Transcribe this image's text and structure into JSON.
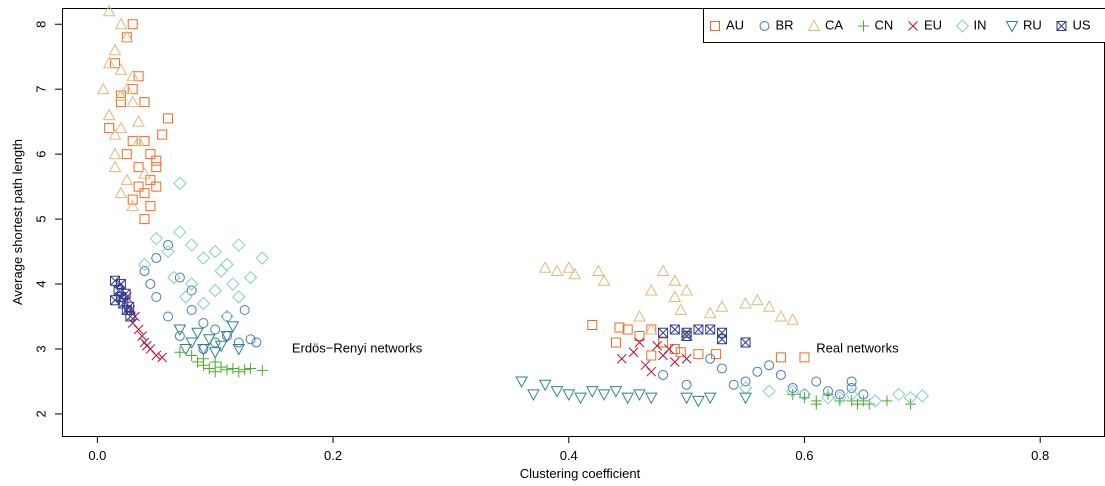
{
  "chart_data": {
    "type": "scatter",
    "x_label": "Clustering coefficient",
    "y_label": "Average shortest path length",
    "annotations": [
      {
        "text": "Erdös−Renyi networks",
        "x": 0.165,
        "y": 3.0
      },
      {
        "text": "Real networks",
        "x": 0.61,
        "y": 3.0
      }
    ],
    "xlim": [
      -0.03,
      0.855
    ],
    "ylim": [
      1.66,
      8.25
    ],
    "xticks": [
      {
        "value": 0,
        "label": "0.0"
      },
      0.2,
      0.4,
      0.6,
      0.8
    ],
    "yticks": [
      2,
      3,
      4,
      5,
      6,
      7,
      8
    ],
    "legend": "top-right",
    "series": [
      {
        "name": "AU",
        "color": "#f26a21",
        "marker": "square",
        "x": [
          0.01,
          0.015,
          0.02,
          0.025,
          0.03,
          0.035,
          0.04,
          0.045,
          0.05,
          0.055,
          0.06,
          0.03,
          0.04,
          0.035,
          0.045,
          0.025,
          0.05,
          0.04,
          0.03,
          0.045,
          0.035,
          0.02,
          0.04,
          0.03,
          0.05,
          0.42,
          0.443,
          0.45,
          0.46,
          0.47,
          0.48,
          0.49,
          0.495,
          0.51,
          0.525,
          0.58,
          0.6,
          0.44,
          0.47
        ],
        "values": [
          6.4,
          7.4,
          6.8,
          7.8,
          8.0,
          7.2,
          6.2,
          5.6,
          5.8,
          6.3,
          6.55,
          5.3,
          5.0,
          5.5,
          5.2,
          6.0,
          5.5,
          6.8,
          7.0,
          6.0,
          5.8,
          6.9,
          5.4,
          6.2,
          5.9,
          3.37,
          3.33,
          3.3,
          3.2,
          3.3,
          3.1,
          3.0,
          2.95,
          2.92,
          2.92,
          2.87,
          2.87,
          3.1,
          2.9
        ]
      },
      {
        "name": "BR",
        "color": "#4a78bd",
        "marker": "circle",
        "x": [
          0.04,
          0.05,
          0.06,
          0.07,
          0.05,
          0.08,
          0.09,
          0.1,
          0.11,
          0.12,
          0.13,
          0.125,
          0.1,
          0.09,
          0.07,
          0.06,
          0.045,
          0.08,
          0.11,
          0.135,
          0.48,
          0.5,
          0.52,
          0.53,
          0.55,
          0.56,
          0.57,
          0.58,
          0.59,
          0.6,
          0.61,
          0.62,
          0.63,
          0.64,
          0.64,
          0.65,
          0.54
        ],
        "values": [
          4.2,
          4.4,
          4.6,
          4.1,
          3.8,
          3.6,
          3.4,
          3.3,
          3.5,
          3.1,
          3.15,
          3.6,
          3.1,
          3.0,
          3.2,
          3.5,
          4.0,
          3.9,
          3.2,
          3.1,
          2.6,
          2.45,
          2.85,
          2.7,
          2.5,
          2.65,
          2.75,
          2.6,
          2.4,
          2.3,
          2.5,
          2.35,
          2.3,
          2.5,
          2.4,
          2.3,
          2.45
        ]
      },
      {
        "name": "CA",
        "color": "#dcbb7e",
        "marker": "triangle",
        "x": [
          0.005,
          0.01,
          0.015,
          0.02,
          0.025,
          0.03,
          0.035,
          0.02,
          0.015,
          0.01,
          0.025,
          0.03,
          0.02,
          0.015,
          0.04,
          0.035,
          0.025,
          0.01,
          0.02,
          0.03,
          0.015,
          0.02,
          0.38,
          0.39,
          0.4,
          0.405,
          0.425,
          0.43,
          0.47,
          0.48,
          0.49,
          0.49,
          0.5,
          0.495,
          0.52,
          0.53,
          0.55,
          0.56,
          0.57,
          0.58,
          0.59,
          0.46,
          0.47,
          0.5
        ],
        "values": [
          7.0,
          8.2,
          7.6,
          7.3,
          7.8,
          6.8,
          6.2,
          6.4,
          6.0,
          6.6,
          5.6,
          5.2,
          5.4,
          5.8,
          5.7,
          6.5,
          7.0,
          7.4,
          6.9,
          7.2,
          6.3,
          8.0,
          4.25,
          4.2,
          4.25,
          4.15,
          4.2,
          4.05,
          3.9,
          4.2,
          4.05,
          3.8,
          3.9,
          3.6,
          3.55,
          3.65,
          3.7,
          3.75,
          3.65,
          3.5,
          3.45,
          3.5,
          3.3,
          3.2
        ]
      },
      {
        "name": "CN",
        "color": "#4cad2b",
        "marker": "plus",
        "x": [
          0.07,
          0.08,
          0.085,
          0.09,
          0.095,
          0.1,
          0.105,
          0.11,
          0.115,
          0.12,
          0.125,
          0.14,
          0.09,
          0.1,
          0.13,
          0.59,
          0.6,
          0.61,
          0.61,
          0.63,
          0.64,
          0.645,
          0.65,
          0.655,
          0.67,
          0.69,
          0.62
        ],
        "values": [
          2.95,
          2.9,
          2.8,
          2.75,
          2.7,
          2.65,
          2.72,
          2.68,
          2.7,
          2.65,
          2.68,
          2.67,
          2.85,
          2.8,
          2.7,
          2.3,
          2.25,
          2.2,
          2.15,
          2.2,
          2.2,
          2.15,
          2.2,
          2.15,
          2.2,
          2.15,
          2.3
        ]
      },
      {
        "name": "EU",
        "color": "#b5123e",
        "marker": "cross",
        "x": [
          0.02,
          0.025,
          0.028,
          0.03,
          0.035,
          0.038,
          0.04,
          0.045,
          0.05,
          0.055,
          0.032,
          0.042,
          0.445,
          0.455,
          0.46,
          0.465,
          0.47,
          0.48,
          0.485,
          0.49,
          0.5,
          0.475
        ],
        "values": [
          4.0,
          3.8,
          3.6,
          3.4,
          3.3,
          3.2,
          3.1,
          3.0,
          2.9,
          2.87,
          3.5,
          3.05,
          2.85,
          2.95,
          3.1,
          2.75,
          2.65,
          2.9,
          3.0,
          2.8,
          2.85,
          3.05
        ]
      },
      {
        "name": "IN",
        "color": "#82ceca",
        "marker": "diamond",
        "x": [
          0.04,
          0.05,
          0.06,
          0.07,
          0.08,
          0.09,
          0.1,
          0.11,
          0.12,
          0.13,
          0.14,
          0.12,
          0.1,
          0.08,
          0.09,
          0.11,
          0.065,
          0.075,
          0.105,
          0.115,
          0.07,
          0.55,
          0.57,
          0.6,
          0.62,
          0.64,
          0.66,
          0.68,
          0.69,
          0.7,
          0.63,
          0.59
        ],
        "values": [
          4.3,
          4.7,
          4.5,
          4.8,
          4.6,
          4.4,
          4.5,
          4.3,
          4.6,
          4.1,
          4.4,
          3.8,
          3.9,
          4.0,
          3.7,
          3.5,
          4.1,
          3.8,
          4.2,
          4.0,
          5.55,
          2.4,
          2.35,
          2.3,
          2.25,
          2.3,
          2.2,
          2.3,
          2.25,
          2.28,
          2.25,
          2.35
        ]
      },
      {
        "name": "RU",
        "color": "#2b8585",
        "marker": "down-triangle",
        "x": [
          0.07,
          0.08,
          0.09,
          0.1,
          0.11,
          0.12,
          0.085,
          0.095,
          0.105,
          0.075,
          0.115,
          0.36,
          0.37,
          0.38,
          0.39,
          0.4,
          0.41,
          0.42,
          0.43,
          0.44,
          0.45,
          0.46,
          0.47,
          0.5,
          0.51,
          0.52,
          0.55
        ],
        "values": [
          3.3,
          3.1,
          3.0,
          2.95,
          3.2,
          3.0,
          3.25,
          3.15,
          3.05,
          3.0,
          3.35,
          2.5,
          2.3,
          2.45,
          2.35,
          2.3,
          2.25,
          2.35,
          2.3,
          2.35,
          2.25,
          2.3,
          2.25,
          2.25,
          2.2,
          2.25,
          2.25
        ]
      },
      {
        "name": "US",
        "color": "#2e3b91",
        "marker": "square-cross",
        "x": [
          0.015,
          0.018,
          0.02,
          0.022,
          0.025,
          0.028,
          0.02,
          0.015,
          0.024,
          0.027,
          0.48,
          0.49,
          0.5,
          0.51,
          0.52,
          0.53,
          0.53,
          0.55,
          0.5
        ],
        "values": [
          4.05,
          3.9,
          3.8,
          3.7,
          3.6,
          3.5,
          4.0,
          3.75,
          3.85,
          3.65,
          3.25,
          3.3,
          3.25,
          3.3,
          3.3,
          3.25,
          3.15,
          3.1,
          3.2
        ]
      }
    ]
  }
}
